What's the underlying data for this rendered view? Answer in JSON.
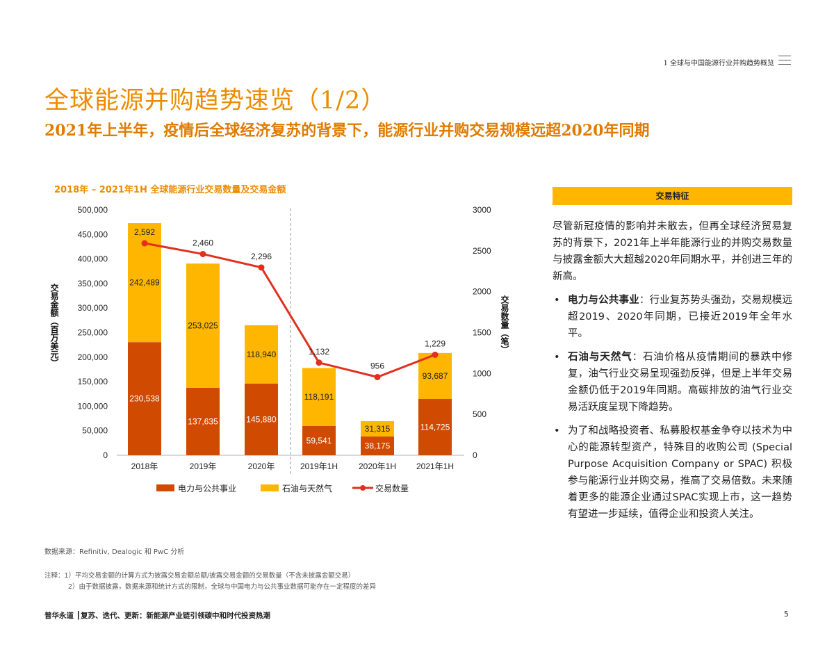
{
  "header": {
    "section_label": "1 全球与中国能源行业并购趋势概览",
    "title": "全球能源并购趋势速览（1/2）",
    "subtitle": "2021年上半年，疫情后全球经济复苏的背景下，能源行业并购交易规模远超2020年同期"
  },
  "chart_data": {
    "type": "bar+line",
    "title": "2018年 – 2021年1H  全球能源行业交易数量及交易金额",
    "categories": [
      "2018年",
      "2019年",
      "2020年",
      "2019年1H",
      "2020年1H",
      "2021年1H"
    ],
    "ylabel_left": "交易金额（百万美元）",
    "ylabel_right": "交易数量（笔）",
    "ylim_left": [
      0,
      500000
    ],
    "ylim_right": [
      0,
      3000
    ],
    "yticks_left": [
      "0",
      "50,000",
      "100,000",
      "150,000",
      "200,000",
      "250,000",
      "300,000",
      "350,000",
      "400,000",
      "450,000",
      "500,000"
    ],
    "yticks_right": [
      "0",
      "500",
      "1000",
      "1500",
      "2000",
      "2500",
      "3000"
    ],
    "stacked": true,
    "divider_after_category": "2020年",
    "legend_position": "bottom",
    "series": [
      {
        "name": "电力与公共事业",
        "type": "bar",
        "axis": "left",
        "color": "#D04A02",
        "values": [
          230538,
          137635,
          145880,
          59541,
          38175,
          114725
        ],
        "labels": [
          "230,538",
          "137,635",
          "145,880",
          "59,541",
          "38,175",
          "114,725"
        ]
      },
      {
        "name": "石油与天然气",
        "type": "bar",
        "axis": "left",
        "color": "#FFB600",
        "values": [
          242489,
          253025,
          118940,
          118191,
          31315,
          93687
        ],
        "labels": [
          "242,489",
          "253,025",
          "118,940",
          "118,191",
          "31,315",
          "93,687"
        ]
      },
      {
        "name": "交易数量",
        "type": "line",
        "axis": "right",
        "color": "#E0301E",
        "values": [
          2592,
          2460,
          2296,
          1132,
          956,
          1229
        ],
        "labels": [
          "2,592",
          "2,460",
          "2,296",
          "1,132",
          "956",
          "1,229"
        ]
      }
    ]
  },
  "panel": {
    "header": "交易特征",
    "intro": "尽管新冠疫情的影响并未散去，但再全球经济贸易复苏的背景下，2021年上半年能源行业的并购交易数量与披露金额大大超越2020年同期水平，并创进三年的新高。",
    "bullets": [
      {
        "bold": "电力与公共事业",
        "text": "：行业复苏势头强劲，交易规模远超2019、2020年同期，已接近2019年全年水平。"
      },
      {
        "bold": "石油与天然气",
        "text": "：石油价格从疫情期间的暴跌中修复，油气行业交易呈现强劲反弹，但是上半年交易金额仍低于2019年同期。高碳排放的油气行业交易活跃度呈现下降趋势。"
      },
      {
        "bold": "",
        "text": "为了和战略投资者、私募股权基金争夺以技术为中心的能源转型资产，特殊目的收购公司 (Special Purpose Acquisition Company or SPAC) 积极参与能源行业并购交易，推高了交易倍数。未来随着更多的能源企业通过SPAC实现上市，这一趋势有望进一步延续，值得企业和投资人关注。"
      }
    ]
  },
  "notes": {
    "source": "数据来源：Refinitiv, Dealogic 和 PwC 分析",
    "note1": "注释：1）平均交易金额的计算方式为披露交易金额总额/披露交易金额的交易数量（不含未披露金额交易）",
    "note2": "2）由于数据披露，数据来源和统计方式的限制，全球与中国电力与公共事业数据可能存在一定程度的差异"
  },
  "footer": {
    "left": "普华永道 ┃复苏、迭代、更新：新能源产业链引领碳中和时代投资热潮",
    "page": "5"
  }
}
